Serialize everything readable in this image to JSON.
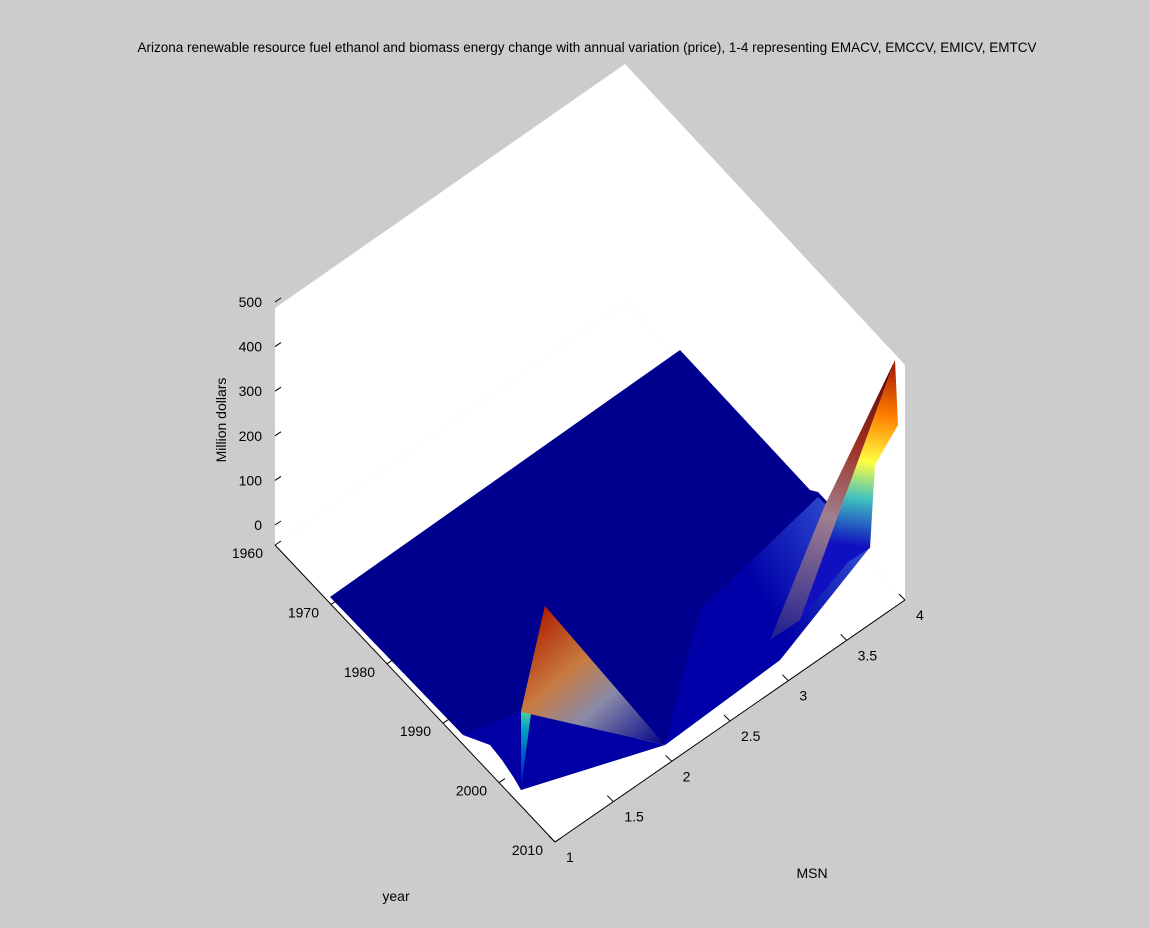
{
  "chart_data": {
    "type": "surface",
    "title": "Arizona renewable resource fuel ethanol and biomass energy change with annual variation (price), 1-4 representing EMACV, EMCCV, EMICV, EMTCV",
    "xlabel": "MSN",
    "ylabel": "year",
    "zlabel": "Million dollars",
    "x_ticks": [
      "1",
      "1.5",
      "2",
      "2.5",
      "3",
      "3.5",
      "4"
    ],
    "y_ticks": [
      "1960",
      "1970",
      "1980",
      "1990",
      "2000",
      "2010"
    ],
    "z_ticks": [
      "0",
      "100",
      "200",
      "300",
      "400",
      "500"
    ],
    "xlim": [
      1,
      4
    ],
    "ylim": [
      1960,
      2010
    ],
    "zlim": [
      0,
      500
    ],
    "colormap": "jet",
    "grid": false,
    "series": [
      {
        "name": "EMACV",
        "msn": 1,
        "years": [
          1960,
          1990,
          2000,
          2010
        ],
        "values": [
          0,
          0,
          0,
          0
        ]
      },
      {
        "name": "EMCCV",
        "msn": 2,
        "years": [
          1960,
          1990,
          2000,
          2010
        ],
        "values": [
          0,
          0,
          310,
          0
        ]
      },
      {
        "name": "EMICV",
        "msn": 3,
        "years": [
          1960,
          1990,
          2000,
          2010
        ],
        "values": [
          0,
          0,
          0,
          0
        ]
      },
      {
        "name": "EMTCV",
        "msn": 4,
        "years": [
          1960,
          1990,
          2000,
          2010
        ],
        "values": [
          0,
          0,
          10,
          290
        ]
      }
    ]
  }
}
